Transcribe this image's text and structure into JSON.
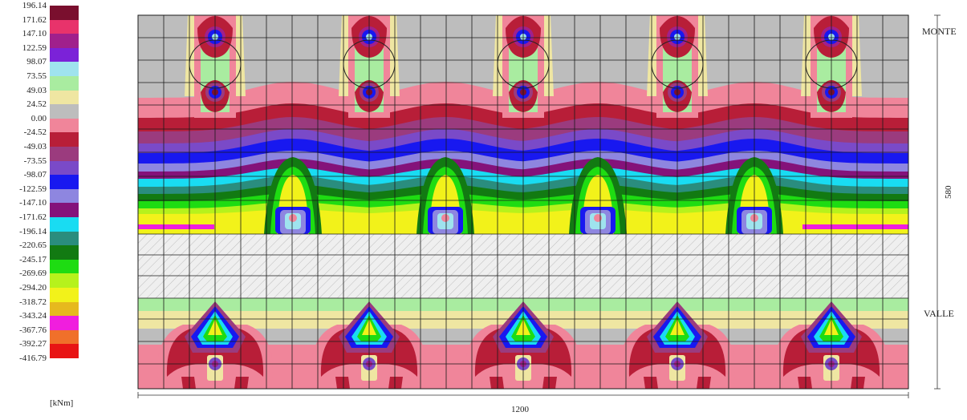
{
  "legend": {
    "unit": "[kNm]",
    "entries": [
      {
        "value": "196.14",
        "color": "#7a0f2e"
      },
      {
        "value": "171.62",
        "color": "#e8336b"
      },
      {
        "value": "147.10",
        "color": "#a0208c"
      },
      {
        "value": "122.59",
        "color": "#7b22d8"
      },
      {
        "value": "98.07",
        "color": "#9fe3ee"
      },
      {
        "value": "73.55",
        "color": "#a9eca0"
      },
      {
        "value": "49.03",
        "color": "#efe6a2"
      },
      {
        "value": "24.52",
        "color": "#bdbdbd"
      },
      {
        "value": "0.00",
        "color": "#f0859a"
      },
      {
        "value": "-24.52",
        "color": "#b81e38"
      },
      {
        "value": "-49.03",
        "color": "#9b3b7e"
      },
      {
        "value": "-73.55",
        "color": "#7a4ac8"
      },
      {
        "value": "-98.07",
        "color": "#1818f0"
      },
      {
        "value": "-122.59",
        "color": "#8e86e0"
      },
      {
        "value": "-147.10",
        "color": "#84127a"
      },
      {
        "value": "-171.62",
        "color": "#19dcf2"
      },
      {
        "value": "-196.14",
        "color": "#2a8d7e"
      },
      {
        "value": "-220.65",
        "color": "#127a12"
      },
      {
        "value": "-245.17",
        "color": "#1edc12"
      },
      {
        "value": "-269.69",
        "color": "#b6f21c"
      },
      {
        "value": "-294.20",
        "color": "#f2f21a"
      },
      {
        "value": "-318.72",
        "color": "#e6b91e"
      },
      {
        "value": "-343.24",
        "color": "#f01ede"
      },
      {
        "value": "-367.76",
        "color": "#f0702a"
      },
      {
        "value": "-392.27",
        "color": "#e81414"
      }
    ],
    "min_label": "-416.79"
  },
  "labels": {
    "monte": "MONTE",
    "valle": "VALLE",
    "width_dim": "1200",
    "height_dim": "580"
  }
}
